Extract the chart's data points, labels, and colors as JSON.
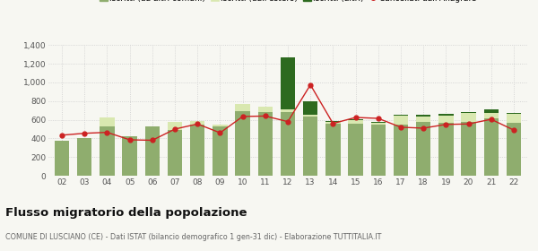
{
  "years": [
    "02",
    "03",
    "04",
    "05",
    "06",
    "07",
    "08",
    "09",
    "10",
    "11",
    "12",
    "13",
    "14",
    "15",
    "16",
    "17",
    "18",
    "19",
    "20",
    "21",
    "22"
  ],
  "iscritti_comuni": [
    375,
    405,
    530,
    420,
    525,
    490,
    550,
    530,
    690,
    680,
    680,
    635,
    555,
    560,
    550,
    545,
    575,
    570,
    580,
    620,
    570
  ],
  "iscritti_estero": [
    0,
    0,
    95,
    0,
    0,
    85,
    40,
    20,
    80,
    60,
    30,
    20,
    20,
    40,
    20,
    95,
    60,
    75,
    90,
    55,
    90
  ],
  "iscritti_altri": [
    0,
    0,
    0,
    0,
    0,
    0,
    0,
    0,
    0,
    0,
    560,
    145,
    15,
    10,
    10,
    10,
    15,
    15,
    10,
    40,
    10
  ],
  "cancellati": [
    435,
    455,
    465,
    385,
    380,
    500,
    555,
    460,
    635,
    640,
    580,
    975,
    560,
    625,
    615,
    520,
    510,
    550,
    555,
    605,
    490
  ],
  "color_comuni": "#8fad6e",
  "color_estero": "#d9e8b0",
  "color_altri": "#2d6a1f",
  "color_cancellati": "#cc2222",
  "ylim": [
    0,
    1400
  ],
  "yticks": [
    0,
    200,
    400,
    600,
    800,
    1000,
    1200,
    1400
  ],
  "title": "Flusso migratorio della popolazione",
  "subtitle": "COMUNE DI LUSCIANO (CE) - Dati ISTAT (bilancio demografico 1 gen-31 dic) - Elaborazione TUTTITALIA.IT",
  "bg_color": "#f7f7f2"
}
